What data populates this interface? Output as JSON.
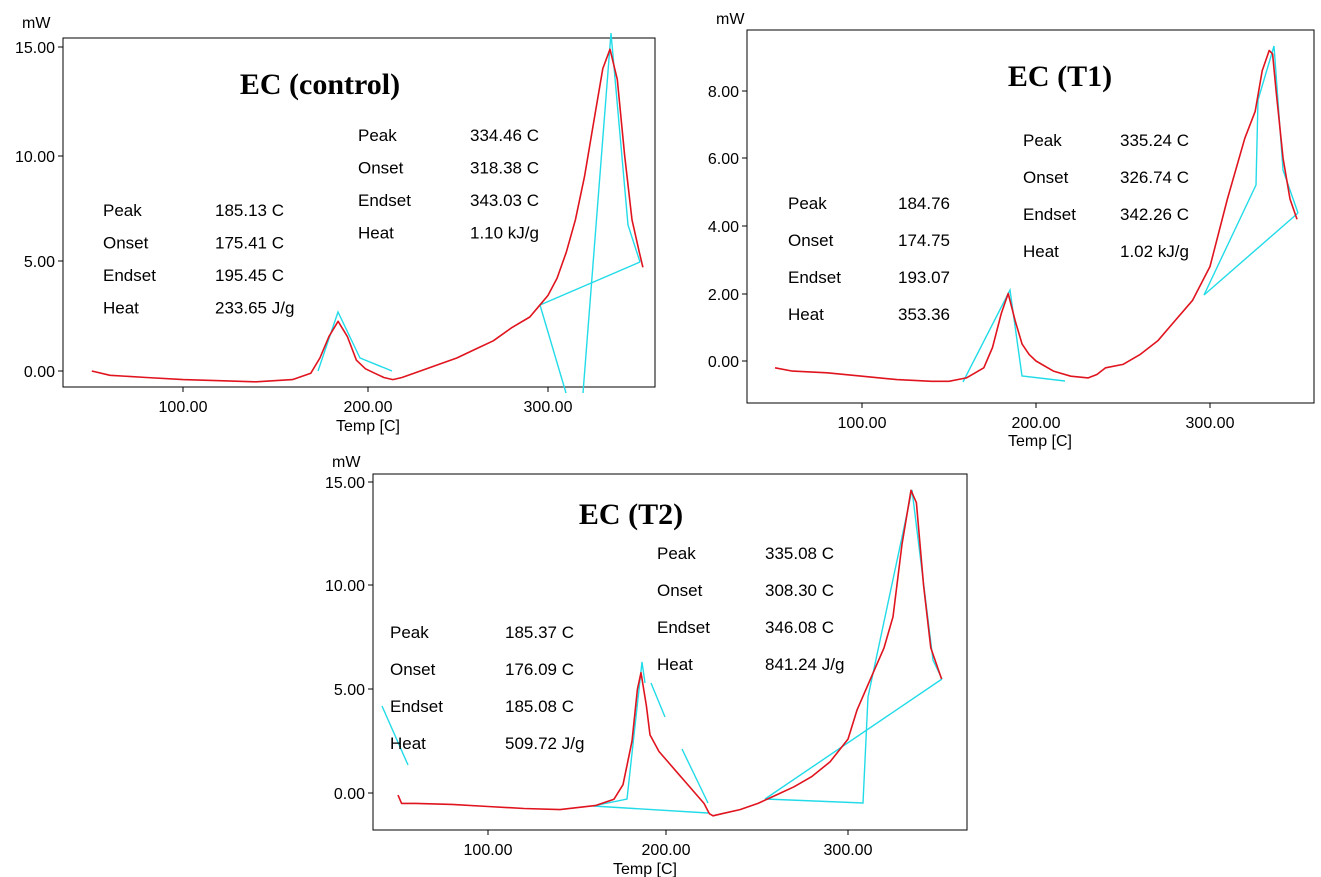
{
  "chart_data": [
    {
      "type": "line",
      "title": "EC (control)",
      "xlabel": "Temp [C]",
      "ylabel": "mW",
      "xlim": [
        40,
        360
      ],
      "ylim": [
        -1.0,
        15.5
      ],
      "xticks": [
        "100.00",
        "200.00",
        "300.00"
      ],
      "yticks": [
        "0.00",
        "5.00",
        "10.00",
        "15.00"
      ],
      "annotations": [
        {
          "rows": [
            [
              "Peak",
              "185.13 C"
            ],
            [
              "Onset",
              "175.41 C"
            ],
            [
              "Endset",
              "195.45 C"
            ],
            [
              "Heat",
              "233.65 J/g"
            ]
          ]
        },
        {
          "rows": [
            [
              "Peak",
              "334.46 C"
            ],
            [
              "Onset",
              "318.38 C"
            ],
            [
              "Endset",
              "343.03 C"
            ],
            [
              "Heat",
              "1.10 kJ/g"
            ]
          ]
        }
      ],
      "series": [
        {
          "x": [
            50,
            60,
            80,
            100,
            120,
            140,
            160,
            170,
            175,
            180,
            185,
            190,
            195,
            200,
            205,
            210,
            215,
            220,
            230,
            240,
            250,
            260,
            270,
            280,
            290,
            295,
            300,
            305,
            310,
            315,
            320,
            325,
            330,
            334,
            338,
            342,
            346,
            350,
            352
          ],
          "y": [
            0.0,
            -0.2,
            -0.3,
            -0.4,
            -0.45,
            -0.5,
            -0.4,
            -0.1,
            0.6,
            1.6,
            2.3,
            1.6,
            0.5,
            0.1,
            -0.1,
            -0.3,
            -0.4,
            -0.3,
            0.0,
            0.3,
            0.6,
            1.0,
            1.4,
            2.0,
            2.5,
            3.0,
            3.5,
            4.3,
            5.5,
            7.0,
            9.0,
            11.5,
            14.0,
            14.9,
            13.5,
            10.0,
            7.0,
            5.5,
            4.8
          ]
        }
      ]
    },
    {
      "type": "line",
      "title": "EC (T1)",
      "xlabel": "Temp [C]",
      "ylabel": "mW",
      "xlim": [
        40,
        355
      ],
      "ylim": [
        -1.2,
        9.6
      ],
      "xticks": [
        "100.00",
        "200.00",
        "300.00"
      ],
      "yticks": [
        "0.00",
        "2.00",
        "4.00",
        "6.00",
        "8.00"
      ],
      "annotations": [
        {
          "rows": [
            [
              "Peak",
              "184.76"
            ],
            [
              "Onset",
              "174.75"
            ],
            [
              "Endset",
              "193.07"
            ],
            [
              "Heat",
              "353.36"
            ]
          ]
        },
        {
          "rows": [
            [
              "Peak",
              "335.24 C"
            ],
            [
              "Onset",
              "326.74 C"
            ],
            [
              "Endset",
              "342.26 C"
            ],
            [
              "Heat",
              "1.02 kJ/g"
            ]
          ]
        }
      ],
      "series": [
        {
          "x": [
            50,
            60,
            80,
            100,
            120,
            140,
            150,
            160,
            170,
            175,
            180,
            184,
            188,
            192,
            196,
            200,
            210,
            220,
            230,
            235,
            240,
            250,
            260,
            270,
            280,
            290,
            300,
            310,
            320,
            326,
            330,
            334,
            336,
            338,
            342,
            346,
            350
          ],
          "y": [
            -0.2,
            -0.3,
            -0.35,
            -0.45,
            -0.55,
            -0.6,
            -0.6,
            -0.5,
            -0.2,
            0.4,
            1.4,
            2.0,
            1.2,
            0.5,
            0.2,
            0.0,
            -0.3,
            -0.45,
            -0.5,
            -0.4,
            -0.2,
            -0.1,
            0.2,
            0.6,
            1.2,
            1.8,
            2.8,
            4.8,
            6.6,
            7.4,
            8.6,
            9.2,
            9.1,
            8.0,
            6.0,
            4.8,
            4.2
          ]
        }
      ]
    },
    {
      "type": "line",
      "title": "EC (T2)",
      "xlabel": "Temp [C]",
      "ylabel": "mW",
      "xlim": [
        40,
        360
      ],
      "ylim": [
        -1.8,
        15.5
      ],
      "xticks": [
        "100.00",
        "200.00",
        "300.00"
      ],
      "yticks": [
        "0.00",
        "5.00",
        "10.00",
        "15.00"
      ],
      "annotations": [
        {
          "rows": [
            [
              "Peak",
              "185.37 C"
            ],
            [
              "Onset",
              "176.09 C"
            ],
            [
              "Endset",
              "185.08 C"
            ],
            [
              "Heat",
              "509.72 J/g"
            ]
          ]
        },
        {
          "rows": [
            [
              "Peak",
              "335.08 C"
            ],
            [
              "Onset",
              "308.30 C"
            ],
            [
              "Endset",
              "346.08 C"
            ],
            [
              "Heat",
              "841.24 J/g"
            ]
          ]
        }
      ],
      "series": [
        {
          "x": [
            50,
            52,
            60,
            80,
            100,
            120,
            140,
            160,
            170,
            175,
            180,
            183,
            185,
            188,
            190,
            195,
            200,
            205,
            210,
            215,
            220,
            223,
            225,
            230,
            240,
            250,
            260,
            270,
            280,
            290,
            300,
            305,
            310,
            315,
            320,
            325,
            330,
            335,
            338,
            342,
            346,
            350,
            352
          ],
          "y": [
            -0.1,
            -0.5,
            -0.5,
            -0.55,
            -0.65,
            -0.75,
            -0.8,
            -0.6,
            -0.3,
            0.4,
            2.5,
            5.0,
            5.8,
            4.2,
            2.8,
            2.0,
            1.5,
            1.0,
            0.5,
            0.0,
            -0.5,
            -1.0,
            -1.1,
            -1.0,
            -0.8,
            -0.5,
            -0.1,
            0.3,
            0.8,
            1.5,
            2.6,
            4.0,
            5.0,
            6.0,
            7.0,
            8.5,
            12.0,
            14.6,
            14.0,
            10.0,
            7.0,
            6.0,
            5.5
          ]
        }
      ]
    }
  ]
}
